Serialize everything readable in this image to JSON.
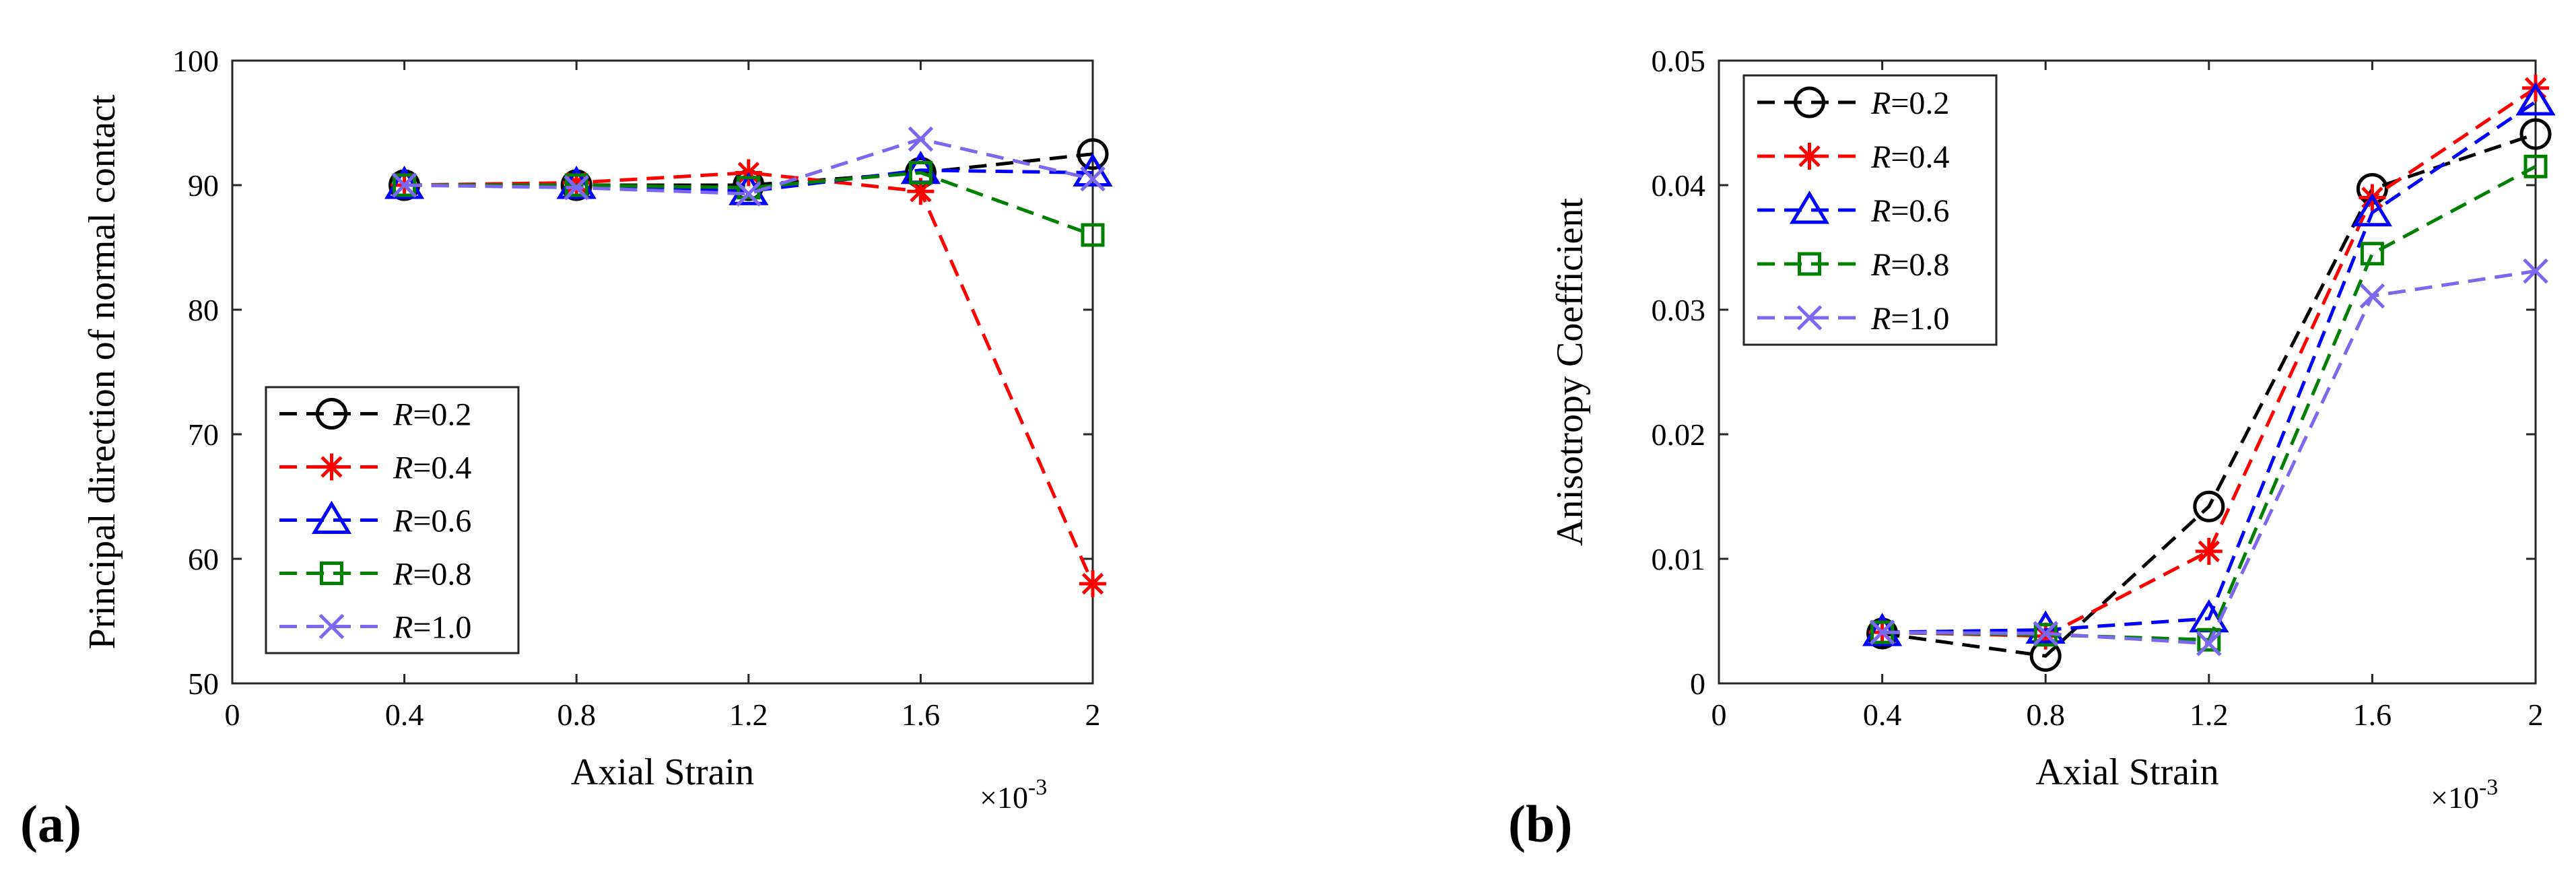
{
  "colors": {
    "axis": "#262626",
    "R=0.2": "#000000",
    "R=0.4": "#ff0000",
    "R=0.6": "#0000ff",
    "R=0.8": "#008000",
    "R=1.0": "#7b68ee"
  },
  "panels": [
    {
      "label": "(a)"
    },
    {
      "label": "(b)"
    }
  ],
  "chart_data": [
    {
      "type": "line",
      "panel": "(a)",
      "xlabel": "Axial Strain",
      "ylabel": "Principal direction of normal contact",
      "x_exponent": {
        "base": "×10",
        "power": "-3"
      },
      "xlim": [
        0,
        2
      ],
      "ylim": [
        50,
        100
      ],
      "xticks": [
        0,
        0.4,
        0.8,
        1.2,
        1.6,
        2
      ],
      "xtick_labels": [
        "0",
        "0.4",
        "0.8",
        "1.2",
        "1.6",
        "2"
      ],
      "yticks": [
        50,
        60,
        70,
        80,
        90,
        100
      ],
      "ytick_labels": [
        "50",
        "60",
        "70",
        "80",
        "90",
        "100"
      ],
      "grid": false,
      "legend_position": "lower-left",
      "x": [
        0.4,
        0.8,
        1.2,
        1.6,
        2.0
      ],
      "series": [
        {
          "key": "R=0.2",
          "name_var": "R",
          "name_val": "=0.2",
          "marker": "circle",
          "values": [
            90.0,
            90.0,
            90.0,
            91.0,
            92.5
          ]
        },
        {
          "key": "R=0.4",
          "name_var": "R",
          "name_val": "=0.4",
          "marker": "star",
          "values": [
            90.0,
            90.2,
            91.0,
            89.5,
            58.0
          ]
        },
        {
          "key": "R=0.6",
          "name_var": "R",
          "name_val": "=0.6",
          "marker": "triangle",
          "values": [
            90.0,
            90.0,
            89.5,
            91.2,
            91.0
          ]
        },
        {
          "key": "R=0.8",
          "name_var": "R",
          "name_val": "=0.8",
          "marker": "square",
          "values": [
            90.0,
            90.0,
            89.8,
            91.0,
            86.0
          ]
        },
        {
          "key": "R=1.0",
          "name_var": "R",
          "name_val": "=1.0",
          "marker": "x",
          "values": [
            90.0,
            89.8,
            89.3,
            93.7,
            90.5
          ]
        }
      ]
    },
    {
      "type": "line",
      "panel": "(b)",
      "xlabel": "Axial Strain",
      "ylabel": "Anisotropy Coefficient",
      "x_exponent": {
        "base": "×10",
        "power": "-3"
      },
      "xlim": [
        0,
        2
      ],
      "ylim": [
        0,
        0.05
      ],
      "xticks": [
        0,
        0.4,
        0.8,
        1.2,
        1.6,
        2
      ],
      "xtick_labels": [
        "0",
        "0.4",
        "0.8",
        "1.2",
        "1.6",
        "2"
      ],
      "yticks": [
        0,
        0.01,
        0.02,
        0.03,
        0.04,
        0.05
      ],
      "ytick_labels": [
        "0",
        "0.01",
        "0.02",
        "0.03",
        "0.04",
        "0.05"
      ],
      "grid": false,
      "legend_position": "top-left",
      "x": [
        0.4,
        0.8,
        1.2,
        1.6,
        2.0
      ],
      "series": [
        {
          "key": "R=0.2",
          "name_var": "R",
          "name_val": "=0.2",
          "marker": "circle",
          "values": [
            0.004,
            0.0022,
            0.0142,
            0.0397,
            0.0441
          ]
        },
        {
          "key": "R=0.4",
          "name_var": "R",
          "name_val": "=0.4",
          "marker": "star",
          "values": [
            0.0041,
            0.0038,
            0.0106,
            0.039,
            0.0478
          ]
        },
        {
          "key": "R=0.6",
          "name_var": "R",
          "name_val": "=0.6",
          "marker": "triangle",
          "values": [
            0.0041,
            0.0043,
            0.0052,
            0.0378,
            0.0467
          ]
        },
        {
          "key": "R=0.8",
          "name_var": "R",
          "name_val": "=0.8",
          "marker": "square",
          "values": [
            0.0041,
            0.0039,
            0.0035,
            0.0345,
            0.0415
          ]
        },
        {
          "key": "R=1.0",
          "name_var": "R",
          "name_val": "=1.0",
          "marker": "x",
          "values": [
            0.0041,
            0.004,
            0.0032,
            0.0311,
            0.0331
          ]
        }
      ]
    }
  ]
}
